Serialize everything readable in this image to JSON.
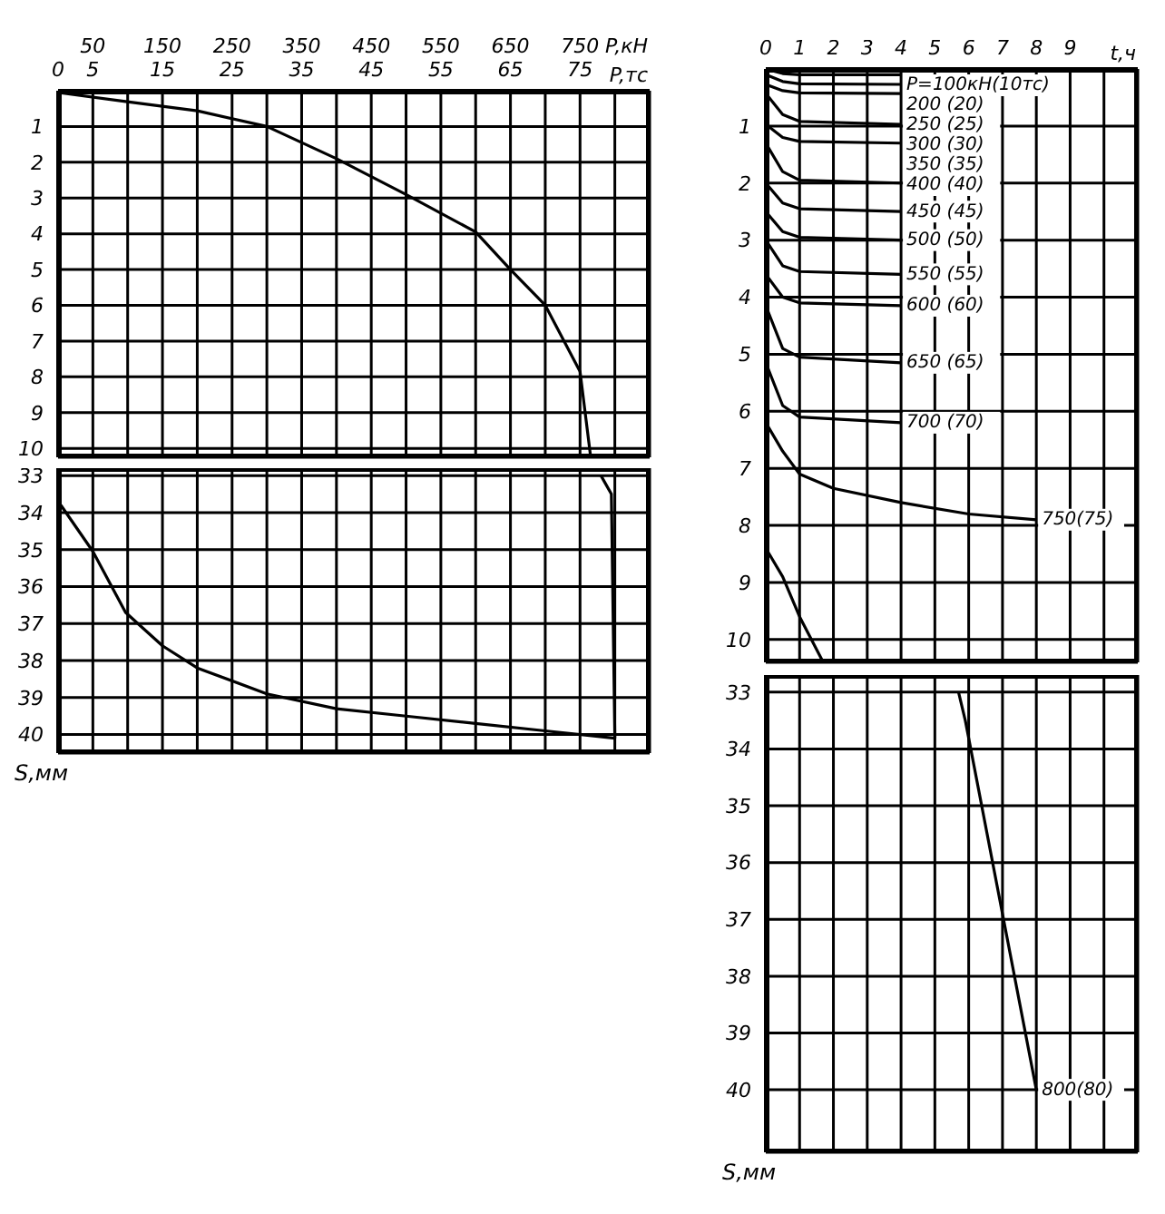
{
  "chart_data": [
    {
      "type": "line",
      "xlabel": "P,тс",
      "x2label": "P,кН",
      "xlim": [
        0,
        85
      ],
      "xticks": [
        0,
        5,
        {
          "value": 10,
          "label": null
        },
        15,
        {
          "value": 20,
          "label": null
        },
        25,
        {
          "value": 30,
          "label": null
        },
        35,
        {
          "value": 40,
          "label": null
        },
        45,
        {
          "value": 50,
          "label": null
        },
        55,
        {
          "value": 60,
          "label": null
        },
        65,
        {
          "value": 70,
          "label": null
        },
        75,
        {
          "value": 80,
          "label": null
        }
      ],
      "x2lim": [
        0,
        850
      ],
      "x2ticks": [
        50,
        150,
        250,
        350,
        450,
        550,
        650,
        750
      ],
      "ylim": [
        10.25,
        0
      ],
      "yticks": [
        1,
        2,
        3,
        4,
        5,
        6,
        7,
        8,
        9,
        10
      ],
      "grid": true,
      "marker": "none",
      "line_style": "solid",
      "series": [
        {
          "color": "#000000",
          "x": [
            0,
            9.7,
            20,
            30,
            40,
            50,
            60,
            65,
            70,
            75,
            76.5
          ],
          "values": [
            0.05,
            0.3,
            0.56,
            1.0,
            1.9,
            2.9,
            3.95,
            5.0,
            6.0,
            7.85,
            10.2
          ]
        }
      ]
    },
    {
      "type": "line",
      "ylabel": "S,мм",
      "xlim": [
        0,
        85
      ],
      "xticks": [
        0,
        5,
        {
          "value": 10,
          "label": null
        },
        15,
        {
          "value": 20,
          "label": null
        },
        25,
        {
          "value": 30,
          "label": null
        },
        35,
        {
          "value": 40,
          "label": null
        },
        45,
        {
          "value": 50,
          "label": null
        },
        55,
        {
          "value": 60,
          "label": null
        },
        65,
        {
          "value": 70,
          "label": null
        },
        75,
        {
          "value": 80,
          "label": null
        }
      ],
      "tick_labels": "y",
      "ylim": [
        40.5,
        32.8
      ],
      "yticks": [
        33,
        34,
        35,
        36,
        37,
        38,
        39,
        40
      ],
      "grid": true,
      "marker": "none",
      "line_style": "solid",
      "series": [
        {
          "color": "#000000",
          "x": [
            78,
            79.5,
            80
          ],
          "values": [
            33,
            33.5,
            40.1
          ]
        },
        {
          "color": "#000000",
          "x": [
            0.4,
            5,
            9.7,
            15,
            20,
            30,
            40,
            50,
            60,
            70,
            80
          ],
          "values": [
            33.8,
            35.05,
            36.7,
            37.6,
            38.2,
            38.9,
            39.3,
            39.5,
            39.7,
            39.9,
            40.1
          ]
        }
      ]
    },
    {
      "type": "line",
      "xlabel": "t,ч",
      "xlim": [
        0,
        11
      ],
      "xticks": [
        0,
        1,
        2,
        3,
        4,
        5,
        6,
        7,
        8,
        9,
        {
          "value": 10,
          "label": null
        }
      ],
      "ylim": [
        10.4,
        0
      ],
      "yticks": [
        1,
        2,
        3,
        4,
        5,
        6,
        7,
        8,
        9,
        10
      ],
      "grid": true,
      "marker": "none",
      "line_style": "solid",
      "series": [
        {
          "name": "P=100кН(10тс)",
          "color": "#000000",
          "x": [
            0,
            0.5,
            1,
            4
          ],
          "values": [
            0,
            0.08,
            0.1,
            0.1
          ]
        },
        {
          "name": "200 (20)",
          "color": "#000000",
          "x": [
            0,
            0.5,
            1,
            4
          ],
          "values": [
            0.1,
            0.22,
            0.26,
            0.27
          ]
        },
        {
          "name": "250 (25)",
          "color": "#000000",
          "x": [
            0,
            0.5,
            1,
            4
          ],
          "values": [
            0.27,
            0.38,
            0.42,
            0.43
          ]
        },
        {
          "name": "300 (30)",
          "color": "#000000",
          "x": [
            0,
            0.5,
            1,
            4
          ],
          "values": [
            0.43,
            0.8,
            0.92,
            0.97
          ]
        },
        {
          "name": "350 (35)",
          "color": "#000000",
          "x": [
            0,
            0.5,
            1,
            4
          ],
          "values": [
            0.97,
            1.2,
            1.27,
            1.3
          ]
        },
        {
          "name": "400 (40)",
          "color": "#000000",
          "x": [
            0,
            0.5,
            1,
            4
          ],
          "values": [
            1.3,
            1.8,
            1.95,
            2.0
          ]
        },
        {
          "name": "450 (45)",
          "color": "#000000",
          "x": [
            0,
            0.5,
            1,
            4
          ],
          "values": [
            2.0,
            2.35,
            2.45,
            2.5
          ]
        },
        {
          "name": "500 (50)",
          "color": "#000000",
          "x": [
            0,
            0.5,
            1,
            4
          ],
          "values": [
            2.5,
            2.85,
            2.95,
            3.0
          ]
        },
        {
          "name": "550 (55)",
          "color": "#000000",
          "x": [
            0,
            0.5,
            1,
            4
          ],
          "values": [
            3.0,
            3.45,
            3.55,
            3.6
          ]
        },
        {
          "name": "600 (60)",
          "color": "#000000",
          "x": [
            0,
            0.5,
            1,
            4
          ],
          "values": [
            3.6,
            4.0,
            4.1,
            4.15
          ]
        },
        {
          "name": "650 (65)",
          "color": "#000000",
          "x": [
            0,
            0.5,
            1,
            4
          ],
          "values": [
            4.15,
            4.9,
            5.05,
            5.15
          ]
        },
        {
          "name": "700 (70)",
          "color": "#000000",
          "x": [
            0,
            0.5,
            1,
            4
          ],
          "values": [
            5.15,
            5.9,
            6.1,
            6.2
          ]
        },
        {
          "name": "750(75)",
          "color": "#000000",
          "x": [
            0,
            0.5,
            1,
            2,
            4,
            6,
            8
          ],
          "values": [
            6.2,
            6.7,
            7.1,
            7.35,
            7.6,
            7.8,
            7.9
          ]
        },
        {
          "color": "#000000",
          "x": [
            0,
            0.5,
            1,
            1.7
          ],
          "values": [
            8.4,
            8.9,
            9.6,
            10.4
          ]
        }
      ]
    },
    {
      "type": "line",
      "ylabel": "S,мм",
      "xlim": [
        0,
        11
      ],
      "xticks": [
        0,
        1,
        2,
        3,
        4,
        5,
        6,
        7,
        8,
        9,
        {
          "value": 10,
          "label": null
        }
      ],
      "tick_labels": "y",
      "ylim": [
        41.1,
        32.7
      ],
      "yticks": [
        33,
        34,
        35,
        36,
        37,
        38,
        39,
        40
      ],
      "grid": true,
      "marker": "none",
      "line_style": "solid",
      "series": [
        {
          "name": "800(80)",
          "color": "#000000",
          "x": [
            5.7,
            5.9,
            8
          ],
          "values": [
            33,
            33.5,
            40
          ]
        }
      ]
    }
  ]
}
